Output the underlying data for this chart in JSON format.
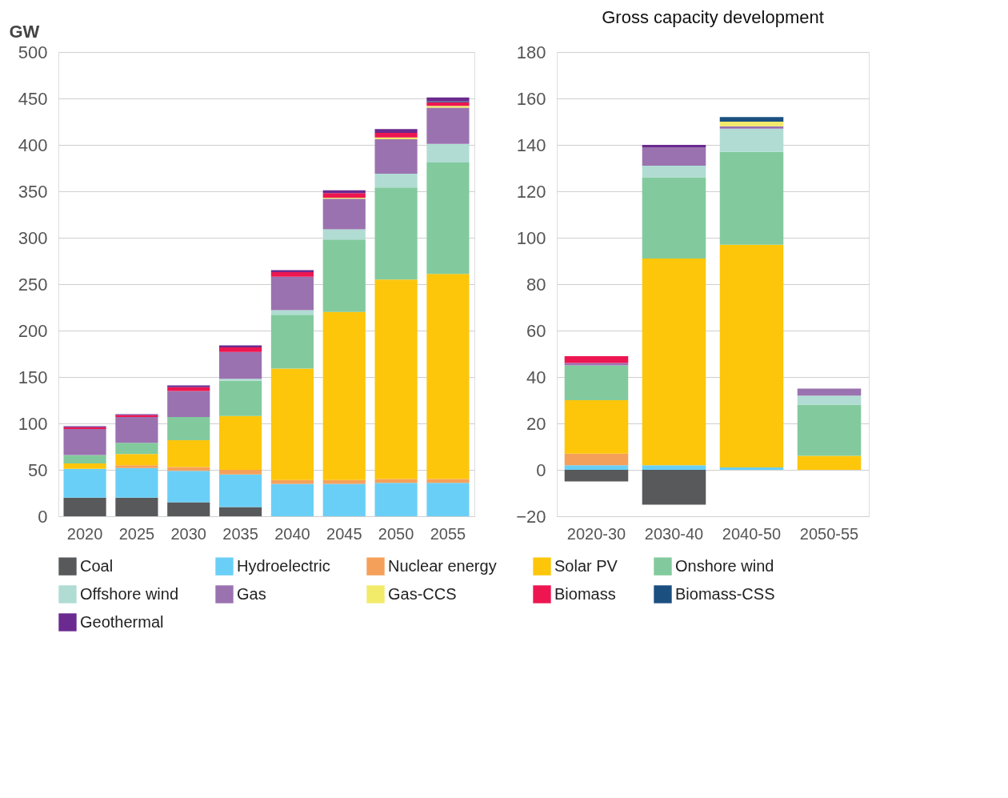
{
  "chart_data": [
    {
      "type": "bar",
      "stacked": true,
      "ylabel": "GW",
      "categories": [
        "2020",
        "2025",
        "2030",
        "2035",
        "2040",
        "2045",
        "2050",
        "2055"
      ],
      "ylim": [
        0,
        500
      ],
      "yticks": [
        0,
        50,
        100,
        150,
        200,
        250,
        300,
        350,
        400,
        450,
        500
      ],
      "grid": "y",
      "legend": "bottom",
      "series": [
        {
          "name": "Coal",
          "color": "#58595b",
          "values": [
            20,
            20,
            15,
            10,
            0,
            0,
            0,
            0
          ]
        },
        {
          "name": "Hydroelectric",
          "color": "#6acff6",
          "values": [
            31,
            32,
            34,
            35,
            35,
            35,
            36,
            36
          ]
        },
        {
          "name": "Nuclear energy",
          "color": "#f5a05a",
          "values": [
            0,
            3,
            4,
            5,
            4,
            4,
            4,
            4
          ]
        },
        {
          "name": "Solar PV",
          "color": "#fdc60b",
          "values": [
            6,
            12,
            29,
            58,
            120,
            181,
            215,
            221
          ]
        },
        {
          "name": "Onshore wind",
          "color": "#82ca9d",
          "values": [
            9,
            12,
            25,
            38,
            58,
            78,
            99,
            120
          ]
        },
        {
          "name": "Offshore wind",
          "color": "#b0dcd3",
          "values": [
            0,
            0,
            0,
            2,
            5,
            11,
            15,
            20
          ]
        },
        {
          "name": "Gas",
          "color": "#9b72b0",
          "values": [
            28,
            28,
            28,
            29,
            36,
            33,
            37,
            39
          ]
        },
        {
          "name": "Gas-CCS",
          "color": "#f2eb6a",
          "values": [
            0,
            0,
            0,
            0,
            0,
            1,
            2,
            2
          ]
        },
        {
          "name": "Biomass",
          "color": "#ed1651",
          "values": [
            2,
            2,
            4,
            5,
            5,
            5,
            5,
            4
          ]
        },
        {
          "name": "Biomass-CSS",
          "color": "#1b4f80",
          "values": [
            0,
            0,
            0,
            0,
            0,
            0,
            0,
            1
          ]
        },
        {
          "name": "Geothermal",
          "color": "#6a2a8f",
          "values": [
            1,
            1,
            2,
            2,
            2,
            3,
            4,
            4
          ]
        }
      ]
    },
    {
      "type": "bar",
      "stacked": true,
      "title": "Gross capacity development",
      "categories": [
        "2020-30",
        "2030-40",
        "2040-50",
        "2050-55"
      ],
      "ylim": [
        -20,
        180
      ],
      "yticks": [
        -20,
        0,
        20,
        40,
        60,
        80,
        100,
        120,
        140,
        160,
        180
      ],
      "grid": "y",
      "legend": "bottom",
      "series": [
        {
          "name": "Coal",
          "color": "#58595b",
          "values": [
            -5,
            -15,
            0,
            0
          ]
        },
        {
          "name": "Hydroelectric",
          "color": "#6acff6",
          "values": [
            2,
            2,
            1,
            0
          ]
        },
        {
          "name": "Nuclear energy",
          "color": "#f5a05a",
          "values": [
            5,
            0,
            0,
            0
          ]
        },
        {
          "name": "Solar PV",
          "color": "#fdc60b",
          "values": [
            23,
            89,
            96,
            6
          ]
        },
        {
          "name": "Onshore wind",
          "color": "#82ca9d",
          "values": [
            15,
            35,
            40,
            22
          ]
        },
        {
          "name": "Offshore wind",
          "color": "#b0dcd3",
          "values": [
            0,
            5,
            10,
            4
          ]
        },
        {
          "name": "Gas",
          "color": "#9b72b0",
          "values": [
            1,
            8,
            1,
            3
          ]
        },
        {
          "name": "Gas-CCS",
          "color": "#f2eb6a",
          "values": [
            0,
            0,
            2,
            0
          ]
        },
        {
          "name": "Biomass",
          "color": "#ed1651",
          "values": [
            3,
            0,
            0,
            0
          ]
        },
        {
          "name": "Biomass-CSS",
          "color": "#1b4f80",
          "values": [
            0,
            0,
            2,
            0
          ]
        },
        {
          "name": "Geothermal",
          "color": "#6a2a8f",
          "values": [
            0,
            1,
            0,
            0
          ]
        }
      ]
    }
  ]
}
